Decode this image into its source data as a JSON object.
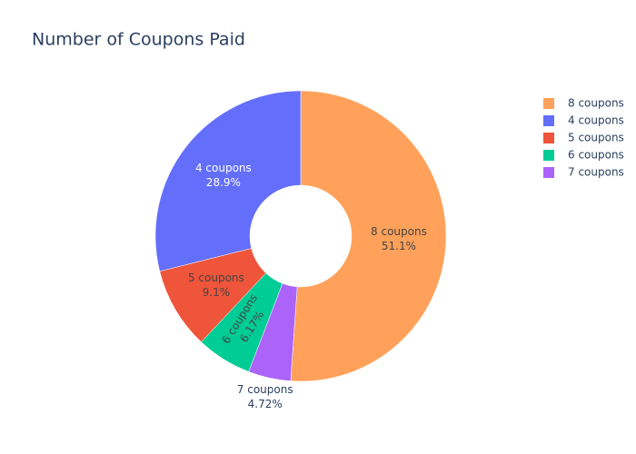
{
  "chart_data": {
    "type": "pie",
    "title": "Number of Coupons Paid",
    "categories": [
      "8 coupons",
      "4 coupons",
      "5 coupons",
      "6 coupons",
      "7 coupons"
    ],
    "values": [
      51.1,
      28.9,
      9.1,
      6.17,
      4.72
    ],
    "value_labels": [
      "51.1%",
      "28.9%",
      "9.1%",
      "6.17%",
      "4.72%"
    ],
    "colors": [
      "#ffa15a",
      "#636efa",
      "#ef553b",
      "#00cc96",
      "#ab63fa"
    ],
    "hole": 0.35,
    "legend": "top-right"
  }
}
